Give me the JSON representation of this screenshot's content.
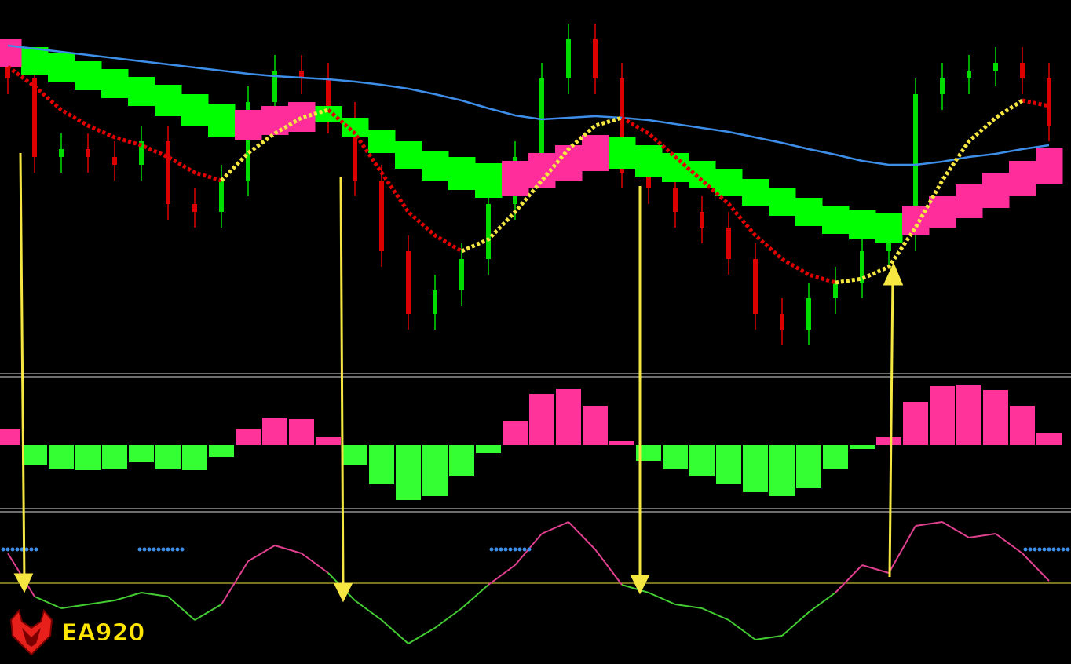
{
  "chart_data": [
    {
      "type": "candlestick",
      "ylim": [
        0,
        478
      ],
      "up_color": "#00dd00",
      "down_color": "#dd0000",
      "open": [
        398,
        378,
        278,
        288,
        278,
        268,
        298,
        218,
        208,
        248,
        348,
        388,
        378,
        328,
        248,
        158,
        78,
        108,
        148,
        218,
        278,
        378,
        428,
        378,
        258,
        238,
        208,
        188,
        148,
        78,
        58,
        98,
        118,
        158,
        178,
        358,
        378,
        388,
        398,
        378
      ],
      "high": [
        418,
        398,
        308,
        308,
        298,
        318,
        318,
        238,
        268,
        368,
        408,
        408,
        398,
        348,
        268,
        178,
        128,
        168,
        238,
        298,
        398,
        448,
        448,
        398,
        278,
        258,
        228,
        208,
        168,
        98,
        118,
        138,
        178,
        198,
        378,
        398,
        408,
        418,
        418,
        398
      ],
      "low": [
        358,
        258,
        258,
        258,
        248,
        248,
        198,
        188,
        188,
        228,
        328,
        358,
        308,
        228,
        138,
        58,
        58,
        88,
        128,
        198,
        258,
        358,
        358,
        238,
        218,
        188,
        168,
        128,
        58,
        38,
        38,
        78,
        98,
        138,
        158,
        338,
        358,
        368,
        358,
        298
      ],
      "close": [
        378,
        278,
        288,
        278,
        268,
        298,
        218,
        208,
        248,
        348,
        388,
        378,
        328,
        248,
        158,
        78,
        108,
        148,
        218,
        278,
        378,
        428,
        378,
        258,
        238,
        208,
        188,
        148,
        78,
        58,
        98,
        118,
        158,
        178,
        358,
        378,
        388,
        398,
        378,
        318
      ],
      "bands": [
        {
          "color": "#00ff00",
          "upper": [
            null,
            418,
            410,
            400,
            390,
            380,
            370,
            358,
            346,
            null,
            null,
            null,
            343,
            328,
            313,
            298,
            286,
            278,
            270,
            null,
            null,
            null,
            null,
            303,
            293,
            283,
            273,
            263,
            250,
            238,
            226,
            216,
            210,
            206,
            null,
            null,
            null,
            null,
            null,
            null
          ],
          "lower": [
            null,
            383,
            373,
            363,
            353,
            343,
            330,
            318,
            303,
            null,
            null,
            null,
            323,
            303,
            283,
            263,
            248,
            236,
            226,
            null,
            null,
            null,
            null,
            263,
            253,
            246,
            238,
            228,
            216,
            203,
            190,
            180,
            173,
            168,
            null,
            null,
            null,
            null,
            null,
            null
          ]
        },
        {
          "color": "#ff2d9b",
          "upper": [
            428,
            null,
            null,
            null,
            null,
            null,
            null,
            null,
            null,
            338,
            343,
            348,
            null,
            null,
            null,
            null,
            null,
            null,
            null,
            273,
            283,
            293,
            306,
            null,
            null,
            null,
            null,
            null,
            null,
            null,
            null,
            null,
            null,
            null,
            216,
            228,
            243,
            258,
            273,
            290
          ],
          "lower": [
            393,
            null,
            null,
            null,
            null,
            null,
            null,
            null,
            null,
            300,
            306,
            310,
            null,
            null,
            null,
            null,
            null,
            null,
            null,
            228,
            238,
            248,
            260,
            null,
            null,
            null,
            null,
            null,
            null,
            null,
            null,
            null,
            null,
            null,
            178,
            188,
            200,
            213,
            228,
            243
          ]
        }
      ],
      "series": [
        {
          "color": "#3d8ee8",
          "style": "solid",
          "values": [
            420,
            416,
            412,
            408,
            404,
            400,
            396,
            392,
            388,
            384,
            381,
            379,
            377,
            374,
            370,
            365,
            358,
            350,
            340,
            331,
            326,
            328,
            330,
            328,
            325,
            320,
            315,
            310,
            303,
            296,
            288,
            281,
            273,
            268,
            268,
            272,
            278,
            282,
            288,
            293
          ]
        },
        {
          "color": "#e00000",
          "style": "dashed",
          "values": [
            393,
            368,
            338,
            318,
            303,
            293,
            278,
            258,
            248,
            null,
            null,
            null,
            338,
            308,
            258,
            208,
            178,
            158,
            null,
            null,
            null,
            null,
            null,
            328,
            308,
            278,
            248,
            218,
            178,
            148,
            128,
            118,
            null,
            null,
            null,
            null,
            null,
            null,
            350,
            343
          ]
        },
        {
          "color": "#f5e642",
          "style": "dashed",
          "values": [
            null,
            null,
            null,
            null,
            null,
            null,
            null,
            null,
            248,
            283,
            308,
            328,
            338,
            null,
            null,
            null,
            null,
            158,
            173,
            208,
            248,
            288,
            318,
            328,
            null,
            null,
            null,
            null,
            null,
            null,
            null,
            118,
            123,
            138,
            188,
            248,
            298,
            328,
            350,
            null
          ]
        }
      ]
    },
    {
      "type": "bar",
      "ylim": [
        -80,
        90
      ],
      "positive_color": "#ff3399",
      "negative_color": "#33ff33",
      "values": [
        20,
        -25,
        -30,
        -32,
        -30,
        -22,
        -30,
        -32,
        -15,
        20,
        35,
        33,
        10,
        -25,
        -50,
        -70,
        -65,
        -40,
        -10,
        30,
        65,
        72,
        50,
        5,
        -20,
        -30,
        -40,
        -50,
        -60,
        -65,
        -55,
        -30,
        -5,
        10,
        55,
        75,
        77,
        70,
        50,
        15
      ]
    },
    {
      "type": "line",
      "ylim": [
        0,
        196
      ],
      "level": 103,
      "above_color": "#e0408f",
      "below_color": "#44cc33",
      "level_color": "#f5e642",
      "values": [
        141,
        86,
        71,
        76,
        81,
        91,
        86,
        56,
        76,
        131,
        151,
        141,
        116,
        81,
        56,
        26,
        46,
        71,
        101,
        126,
        166,
        181,
        146,
        101,
        91,
        76,
        71,
        56,
        31,
        36,
        66,
        91,
        126,
        116,
        176,
        181,
        161,
        166,
        141,
        106
      ]
    }
  ],
  "logo": {
    "text": "EA920"
  }
}
